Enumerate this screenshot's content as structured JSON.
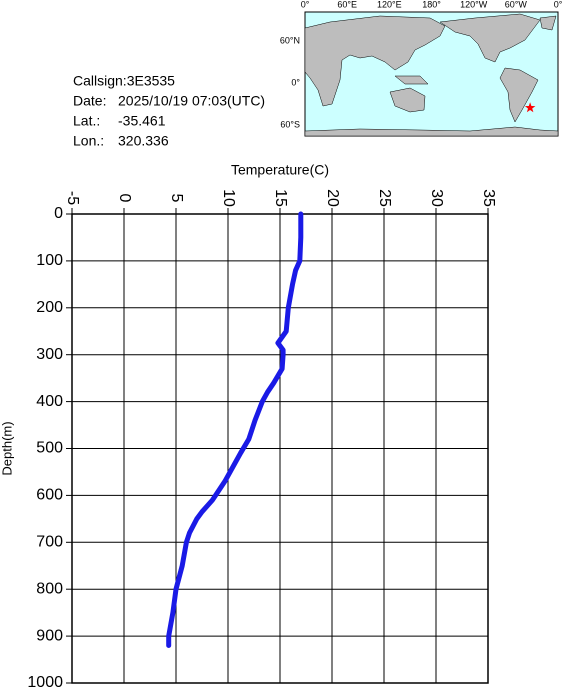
{
  "info": {
    "callsign": "Callsign:3E3535",
    "date_label": "Date:",
    "date": "2025/10/19 07:03(UTC)",
    "lat_label": "Lat.:",
    "lat": -35.461,
    "lon_label": "Lon.:",
    "lon": 320.336
  },
  "map": {
    "lon_labels": [
      "0°",
      "60°E",
      "120°E",
      "180°",
      "120°W",
      "60°W",
      "0°"
    ],
    "lat_labels": [
      "60°N",
      "0°",
      "60°S"
    ],
    "marker_color": "#ff0000"
  },
  "chart_data": {
    "type": "line",
    "x_label": "Temperature(C)",
    "y_label": "Depth(m)",
    "xlim": [
      -5,
      35
    ],
    "xticks": [
      -5,
      0,
      5,
      10,
      15,
      20,
      25,
      30,
      35
    ],
    "ylim": [
      0,
      1000
    ],
    "yticks": [
      0,
      100,
      200,
      300,
      400,
      500,
      600,
      700,
      800,
      900,
      1000
    ],
    "y_inverted": true,
    "grid": true,
    "x": [
      17.0,
      17.0,
      16.9,
      16.5,
      16.2,
      15.8,
      15.6,
      14.8,
      15.3,
      15.3,
      15.2,
      14.4,
      13.8,
      13.3,
      12.6,
      12.0,
      11.2,
      10.7,
      9.7,
      8.5,
      7.5,
      7.0,
      6.3,
      6.0,
      5.6,
      5.0,
      4.7,
      4.3,
      4.3
    ],
    "values": [
      0,
      50,
      100,
      120,
      150,
      200,
      250,
      275,
      290,
      300,
      330,
      360,
      380,
      400,
      440,
      480,
      510,
      530,
      570,
      610,
      635,
      650,
      680,
      700,
      750,
      800,
      850,
      900,
      920
    ],
    "color": "#1a1ae6"
  }
}
